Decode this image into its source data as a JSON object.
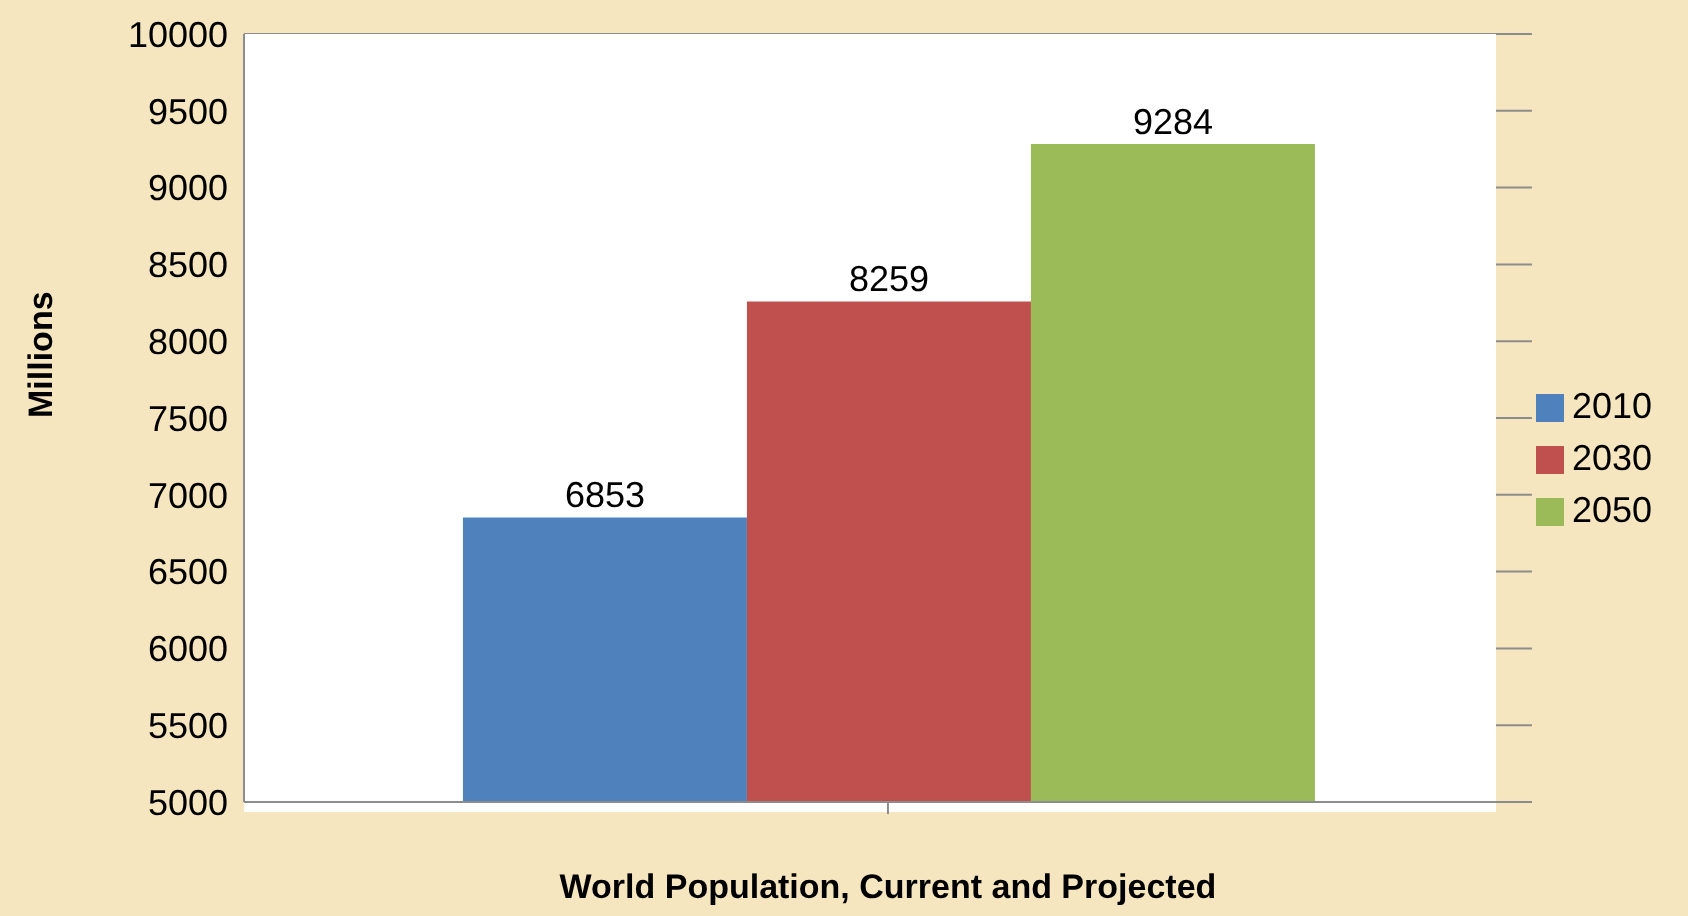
{
  "chart_data": {
    "type": "bar",
    "xlabel": "World Population, Current and Projected",
    "ylabel": "Millions",
    "categories": [
      null
    ],
    "series": [
      {
        "name": "2010",
        "color": "#4f81bd",
        "values": [
          6853
        ]
      },
      {
        "name": "2030",
        "color": "#c0504d",
        "values": [
          8259
        ]
      },
      {
        "name": "2050",
        "color": "#9bbb59",
        "values": [
          9284
        ]
      }
    ],
    "ylim": [
      5000,
      10000
    ],
    "yticks": [
      5000,
      5500,
      6000,
      6500,
      7000,
      7500,
      8000,
      8500,
      9000,
      9500,
      10000
    ],
    "grid": "y",
    "legend": "right",
    "data_labels": true
  }
}
